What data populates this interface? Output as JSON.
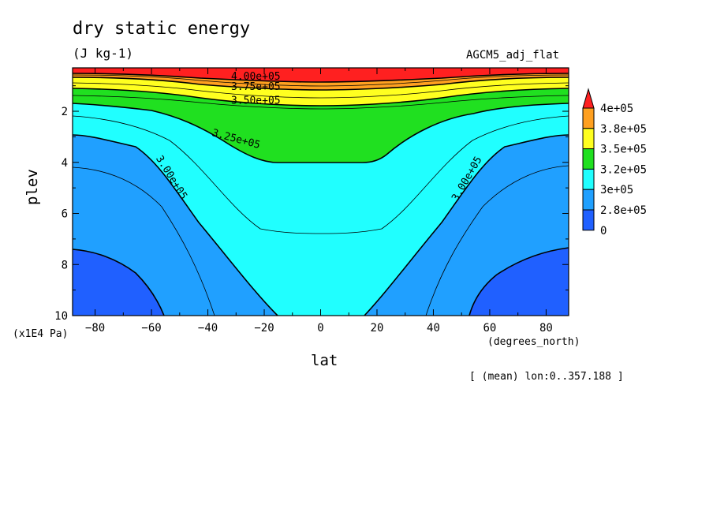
{
  "chart_data": {
    "type": "contour",
    "title": "dry static energy",
    "units": "(J kg-1)",
    "model_label": "AGCM5_adj_flat",
    "xlabel": "lat",
    "x_unit": "(degrees_north)",
    "ylabel": "plev",
    "y_unit": "(x1E4 Pa)",
    "note": "[ (mean) lon:0..357.188 ]",
    "xlim": [
      -88,
      88
    ],
    "ylim": [
      10,
      0.3
    ],
    "x_ticks": [
      {
        "value": -80,
        "label": "−80"
      },
      {
        "value": -60,
        "label": "−60"
      },
      {
        "value": -40,
        "label": "−40"
      },
      {
        "value": -20,
        "label": "−20"
      },
      {
        "value": 0,
        "label": "0"
      },
      {
        "value": 20,
        "label": "20"
      },
      {
        "value": 40,
        "label": "40"
      },
      {
        "value": 60,
        "label": "60"
      },
      {
        "value": 80,
        "label": "80"
      }
    ],
    "y_ticks": [
      {
        "value": 2,
        "label": "2"
      },
      {
        "value": 4,
        "label": "4"
      },
      {
        "value": 6,
        "label": "6"
      },
      {
        "value": 8,
        "label": "8"
      },
      {
        "value": 10,
        "label": "10"
      }
    ],
    "contour_labels": [
      {
        "text": "4.00e+05",
        "x": -23,
        "y": 0.65,
        "angle": 0
      },
      {
        "text": "3.75e+05",
        "x": -23,
        "y": 1.05,
        "angle": 0
      },
      {
        "text": "3.50e+05",
        "x": -23,
        "y": 1.6,
        "angle": 0
      },
      {
        "text": "3.25e+05",
        "x": -30,
        "y": 3.1,
        "angle": 15
      },
      {
        "text": "3.00e+05",
        "x": -53,
        "y": 4.6,
        "angle": 58
      },
      {
        "text": "3.00e+05",
        "x": 52,
        "y": 4.65,
        "angle": -60
      }
    ],
    "colorbar": {
      "labels": [
        "4e+05",
        "3.8e+05",
        "3.5e+05",
        "3.2e+05",
        "3e+05",
        "2.8e+05",
        "0"
      ],
      "colors": [
        "#ff2020",
        "#ffa020",
        "#ffff20",
        "#20e020",
        "#20ffff",
        "#20a0ff",
        "#2060ff"
      ]
    }
  }
}
